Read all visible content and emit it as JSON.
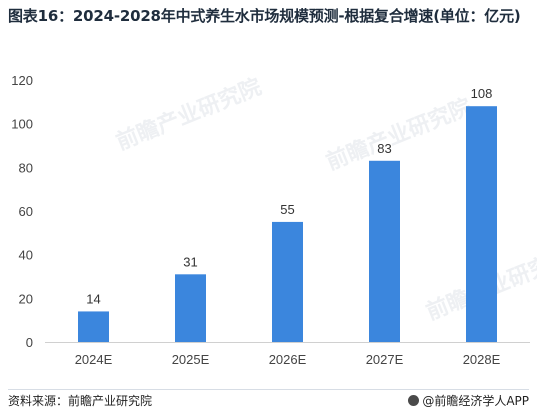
{
  "title": "图表16：2024-2028年中式养生水市场规模预测-根据复合增速(单位：亿元)",
  "footer": {
    "source": "资料来源：前瞻产业研究院",
    "credit": "@前瞻经济学人APP"
  },
  "watermark_text": "前瞻产业研究院",
  "colors": {
    "bar": "#3b86dd",
    "axis": "#d0d0d0",
    "title": "#1f2d3d"
  },
  "chart_data": {
    "type": "bar",
    "categories": [
      "2024E",
      "2025E",
      "2026E",
      "2027E",
      "2028E"
    ],
    "values": [
      14,
      31,
      55,
      83,
      108
    ],
    "ylim": [
      0,
      120
    ],
    "yticks": [
      0,
      20,
      40,
      60,
      80,
      100,
      120
    ],
    "grid": false,
    "data_labels": true,
    "xlabel": "",
    "ylabel": ""
  }
}
